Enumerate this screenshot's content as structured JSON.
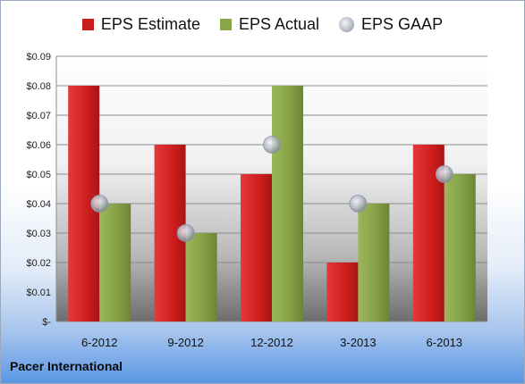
{
  "chart_data": {
    "type": "bar",
    "categories": [
      "6-2012",
      "9-2012",
      "12-2012",
      "3-2013",
      "6-2013"
    ],
    "series": [
      {
        "name": "EPS Estimate",
        "values": [
          0.08,
          0.06,
          0.05,
          0.02,
          0.06
        ],
        "color": "#c81e1e"
      },
      {
        "name": "EPS Actual",
        "values": [
          0.04,
          0.03,
          0.08,
          0.04,
          0.05
        ],
        "color": "#8aa64a"
      },
      {
        "name": "EPS GAAP",
        "values": [
          0.04,
          0.03,
          0.06,
          0.04,
          0.05
        ],
        "color": "#b7bec9",
        "marker": "circle"
      }
    ],
    "yticks": [
      "$-",
      "$0.01",
      "$0.02",
      "$0.03",
      "$0.04",
      "$0.05",
      "$0.06",
      "$0.07",
      "$0.08",
      "$0.09"
    ],
    "ylim": [
      0,
      0.09
    ],
    "title": "",
    "xlabel": "",
    "ylabel": "",
    "grid": true,
    "legend_position": "top"
  },
  "footer": {
    "company": "Pacer International"
  }
}
